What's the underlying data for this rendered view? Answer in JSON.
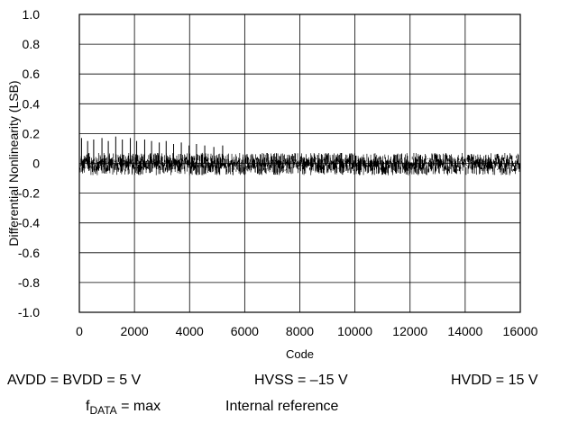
{
  "chart_data": {
    "type": "line",
    "title": "",
    "xlabel": "Code",
    "ylabel": "Differential Nonlinearity (LSB)",
    "xlim": [
      0,
      16000
    ],
    "ylim": [
      -1.0,
      1.0
    ],
    "x_ticks": [
      "0",
      "2000",
      "4000",
      "6000",
      "8000",
      "10000",
      "12000",
      "14000",
      "16000"
    ],
    "y_ticks": [
      "1.0",
      "0.8",
      "0.6",
      "0.4",
      "0.2",
      "0",
      "-0.2",
      "-0.4",
      "-0.6",
      "-0.8",
      "-1.0"
    ],
    "grid": true,
    "series": [
      {
        "color": "#000000",
        "description": "dense noise band around 0 LSB across all codes",
        "typical_range": [
          -0.08,
          0.07
        ],
        "early_spikes": [
          {
            "x": 80,
            "y": 0.17
          },
          {
            "x": 300,
            "y": 0.15
          },
          {
            "x": 520,
            "y": 0.16
          },
          {
            "x": 820,
            "y": 0.17
          },
          {
            "x": 1050,
            "y": 0.15
          },
          {
            "x": 1320,
            "y": 0.18
          },
          {
            "x": 1560,
            "y": 0.16
          },
          {
            "x": 1850,
            "y": 0.17
          },
          {
            "x": 2080,
            "y": 0.15
          },
          {
            "x": 2370,
            "y": 0.16
          },
          {
            "x": 2620,
            "y": 0.15
          },
          {
            "x": 2900,
            "y": 0.14
          },
          {
            "x": 3150,
            "y": 0.15
          },
          {
            "x": 3420,
            "y": 0.13
          },
          {
            "x": 3700,
            "y": 0.14
          },
          {
            "x": 3980,
            "y": 0.12
          },
          {
            "x": 4250,
            "y": 0.13
          },
          {
            "x": 4550,
            "y": 0.12
          },
          {
            "x": 4880,
            "y": 0.11
          },
          {
            "x": 5200,
            "y": 0.12
          }
        ],
        "y_min": -0.1,
        "y_max": 0.18
      }
    ]
  },
  "conditions": {
    "line1": {
      "supply": "AVDD = BVDD = 5 V",
      "hvss": "HVSS = –15 V",
      "hvdd": "HVDD = 15 V"
    },
    "line2": {
      "fdata_f": "f",
      "fdata_sub": "DATA",
      "fdata_rest": " = max",
      "reference": "Internal reference"
    }
  }
}
